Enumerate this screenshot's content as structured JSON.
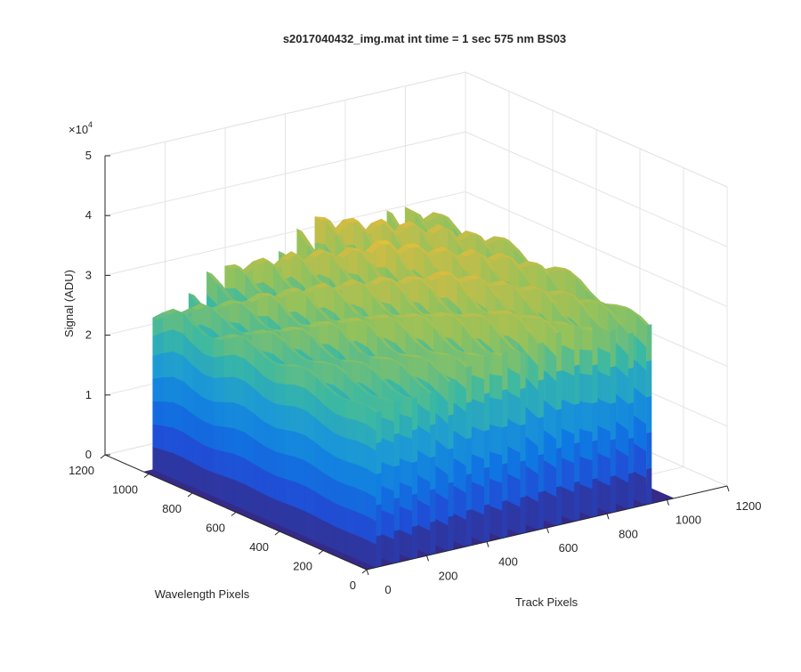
{
  "chart_data": {
    "type": "surface",
    "title": "s2017040432_img.mat int time = 1 sec  575 nm BS03",
    "xlabel": "Track Pixels",
    "ylabel": "Wavelength Pixels",
    "zlabel": "Signal (ADU)",
    "z_exponent_label": "×10",
    "z_exponent": "4",
    "xlim": [
      0,
      1200
    ],
    "ylim": [
      0,
      1200
    ],
    "zlim": [
      0,
      50000
    ],
    "x_ticks": [
      "0",
      "200",
      "400",
      "600",
      "800",
      "1000",
      "1200"
    ],
    "y_ticks": [
      "0",
      "200",
      "400",
      "600",
      "800",
      "1000",
      "1200"
    ],
    "z_ticks": [
      "0",
      "1",
      "2",
      "3",
      "4",
      "5"
    ],
    "grid": true,
    "colormap": "parula",
    "colormap_stops": [
      "#352a87",
      "#1f4fd6",
      "#0f79e3",
      "#1d9ad4",
      "#39b8a5",
      "#93c25c",
      "#d9bb41",
      "#f9fb0e"
    ],
    "background_level": 0,
    "wavelength_extent": [
      0,
      1024
    ],
    "peak_track_extent": [
      0,
      1024
    ],
    "peaks": [
      {
        "track": 40,
        "wavelength_plateau": 29000,
        "tip": 32000
      },
      {
        "track": 100,
        "wavelength_plateau": 30000,
        "tip": 33000
      },
      {
        "track": 160,
        "wavelength_plateau": 30500,
        "tip": 34000
      },
      {
        "track": 220,
        "wavelength_plateau": 31500,
        "tip": 35500
      },
      {
        "track": 280,
        "wavelength_plateau": 32500,
        "tip": 36500
      },
      {
        "track": 340,
        "wavelength_plateau": 33500,
        "tip": 37500
      },
      {
        "track": 400,
        "wavelength_plateau": 34000,
        "tip": 38500
      },
      {
        "track": 460,
        "wavelength_plateau": 34500,
        "tip": 39500
      },
      {
        "track": 520,
        "wavelength_plateau": 35000,
        "tip": 40000
      },
      {
        "track": 580,
        "wavelength_plateau": 36000,
        "tip": 41500
      },
      {
        "track": 640,
        "wavelength_plateau": 36000,
        "tip": 41000
      },
      {
        "track": 700,
        "wavelength_plateau": 35500,
        "tip": 40500
      },
      {
        "track": 760,
        "wavelength_plateau": 35000,
        "tip": 40500
      },
      {
        "track": 820,
        "wavelength_plateau": 35000,
        "tip": 40000
      },
      {
        "track": 880,
        "wavelength_plateau": 34000,
        "tip": 39000
      },
      {
        "track": 940,
        "wavelength_plateau": 34000,
        "tip": 38000
      }
    ]
  }
}
